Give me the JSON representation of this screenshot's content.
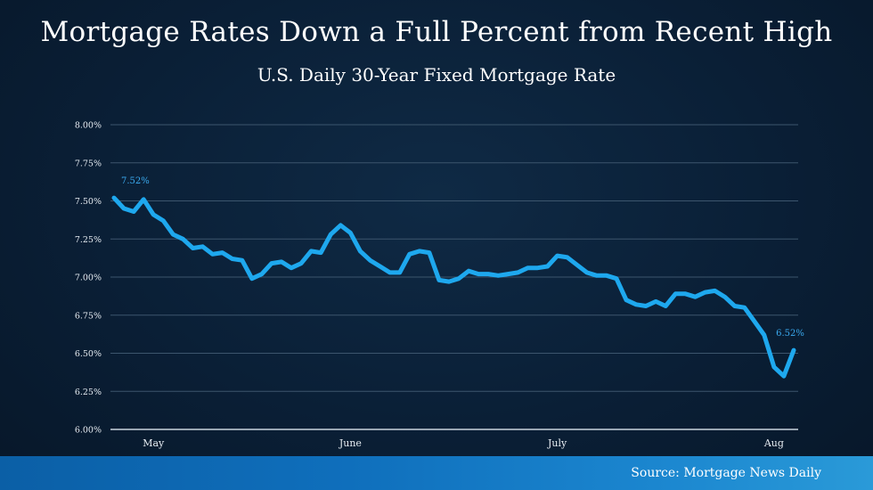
{
  "chart_data": {
    "type": "line",
    "title": "Mortgage Rates Down a Full Percent from Recent High",
    "subtitle": "U.S. Daily 30-Year Fixed Mortgage Rate",
    "ylim": [
      6.0,
      8.0
    ],
    "y_ticks": [
      "6.00%",
      "6.25%",
      "6.50%",
      "6.75%",
      "7.00%",
      "7.25%",
      "7.50%",
      "7.75%",
      "8.00%"
    ],
    "x_month_labels": [
      {
        "label": "May",
        "index": 4
      },
      {
        "label": "June",
        "index": 24
      },
      {
        "label": "July",
        "index": 45
      },
      {
        "label": "Aug",
        "index": 67
      }
    ],
    "grid": true,
    "color": "#1ea8ee",
    "series": [
      {
        "values": [
          7.52,
          7.45,
          7.43,
          7.51,
          7.41,
          7.37,
          7.28,
          7.25,
          7.19,
          7.2,
          7.15,
          7.16,
          7.12,
          7.11,
          6.99,
          7.02,
          7.09,
          7.1,
          7.06,
          7.09,
          7.17,
          7.16,
          7.28,
          7.34,
          7.29,
          7.17,
          7.11,
          7.07,
          7.03,
          7.03,
          7.15,
          7.17,
          7.16,
          6.98,
          6.97,
          6.99,
          7.04,
          7.02,
          7.02,
          7.01,
          7.02,
          7.03,
          7.06,
          7.06,
          7.07,
          7.14,
          7.13,
          7.08,
          7.03,
          7.01,
          7.01,
          6.99,
          6.85,
          6.82,
          6.81,
          6.84,
          6.81,
          6.89,
          6.89,
          6.87,
          6.9,
          6.91,
          6.87,
          6.81,
          6.8,
          6.71,
          6.62,
          6.41,
          6.35,
          6.52
        ]
      }
    ],
    "annotations": [
      {
        "text": "7.52%",
        "index": 0
      },
      {
        "text": "6.52%",
        "index": 69
      }
    ]
  },
  "source": "Source: Mortgage News Daily"
}
